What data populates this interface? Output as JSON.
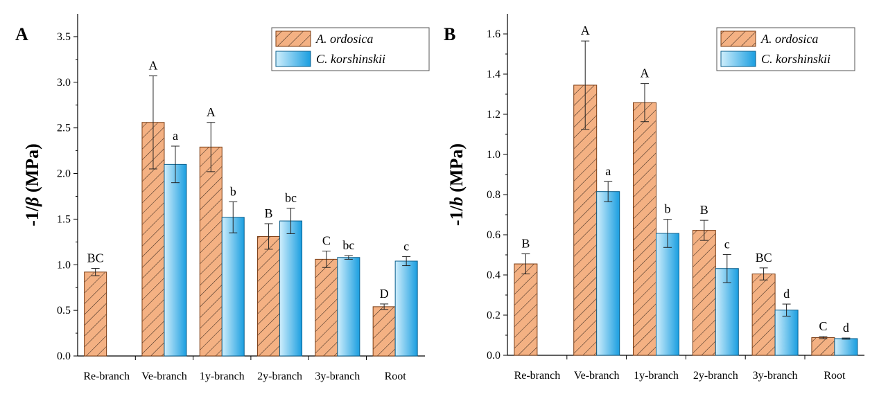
{
  "colors": {
    "ordosica_fill": "#f4b183",
    "ordosica_hatch": "#3a2a20",
    "ordosica_edge": "#7a3b12",
    "kor_light": "#cfeefc",
    "kor_dark": "#1a9ee0",
    "kor_edge": "#0b5f8c"
  },
  "chart_data": [
    {
      "type": "bar",
      "panel_label": "A",
      "ylabel_prefix": "-1/",
      "ylabel_symbol": "β",
      "ylabel_suffix": " (MPa)",
      "ylim": [
        0,
        3.75
      ],
      "yticks": [
        0.0,
        0.5,
        1.0,
        1.5,
        2.0,
        2.5,
        3.0,
        3.5
      ],
      "ytick_labels": [
        "0.0",
        "0.5",
        "1.0",
        "1.5",
        "2.0",
        "2.5",
        "3.0",
        "3.5"
      ],
      "categories": [
        "Re-branch",
        "Ve-branch",
        "1y-branch",
        "2y-branch",
        "3y-branch",
        "Root"
      ],
      "legend_position": "top-right",
      "series": [
        {
          "name": "A. ordosica",
          "values": [
            0.92,
            2.56,
            2.29,
            1.31,
            1.06,
            0.54
          ],
          "errors": [
            0.04,
            0.51,
            0.27,
            0.14,
            0.09,
            0.03
          ],
          "labels": [
            "BC",
            "A",
            "A",
            "B",
            "C",
            "D"
          ]
        },
        {
          "name": "C. korshinskii",
          "values": [
            null,
            2.1,
            1.52,
            1.48,
            1.08,
            1.04
          ],
          "errors": [
            null,
            0.2,
            0.17,
            0.14,
            0.02,
            0.05
          ],
          "labels": [
            "",
            "a",
            "b",
            "bc",
            "bc",
            "c"
          ]
        }
      ]
    },
    {
      "type": "bar",
      "panel_label": "B",
      "ylabel_prefix": "-1/",
      "ylabel_symbol": "b",
      "ylabel_suffix": " (MPa)",
      "ylim": [
        0,
        1.7
      ],
      "yticks": [
        0.0,
        0.2,
        0.4,
        0.6,
        0.8,
        1.0,
        1.2,
        1.4,
        1.6
      ],
      "ytick_labels": [
        "0.0",
        "0.2",
        "0.4",
        "0.6",
        "0.8",
        "1.0",
        "1.2",
        "1.4",
        "1.6"
      ],
      "categories": [
        "Re-branch",
        "Ve-branch",
        "1y-branch",
        "2y-branch",
        "3y-branch",
        "Root"
      ],
      "legend_position": "top-right",
      "series": [
        {
          "name": "A. ordosica",
          "values": [
            0.455,
            1.345,
            1.258,
            0.622,
            0.405,
            0.088
          ],
          "errors": [
            0.05,
            0.22,
            0.095,
            0.05,
            0.03,
            0.005
          ],
          "labels": [
            "B",
            "A",
            "A",
            "B",
            "BC",
            "C"
          ]
        },
        {
          "name": "C. korshinskii",
          "values": [
            null,
            0.815,
            0.607,
            0.432,
            0.225,
            0.083
          ],
          "errors": [
            null,
            0.05,
            0.07,
            0.07,
            0.03,
            0.003
          ],
          "labels": [
            "",
            "a",
            "b",
            "c",
            "d",
            "d"
          ]
        }
      ]
    }
  ]
}
